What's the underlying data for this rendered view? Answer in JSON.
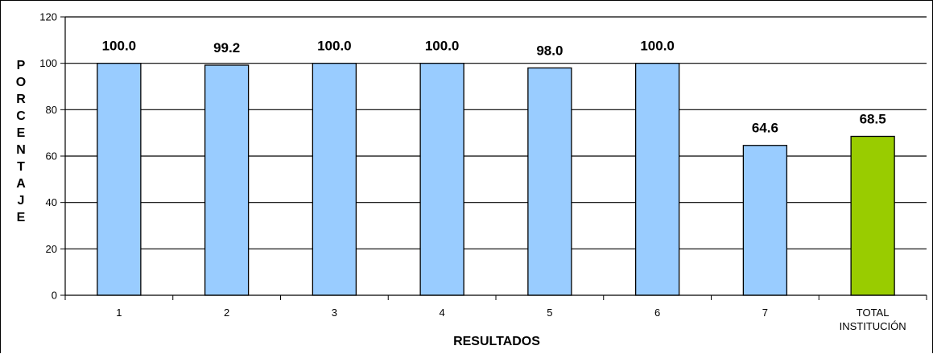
{
  "chart_data": {
    "type": "bar",
    "categories": [
      "1",
      "2",
      "3",
      "4",
      "5",
      "6",
      "7",
      "TOTAL INSTITUCIÓN"
    ],
    "category_lines": [
      [
        "1"
      ],
      [
        "2"
      ],
      [
        "3"
      ],
      [
        "4"
      ],
      [
        "5"
      ],
      [
        "6"
      ],
      [
        "7"
      ],
      [
        "TOTAL",
        "INSTITUCIÓN"
      ]
    ],
    "values": [
      100.0,
      99.2,
      100.0,
      100.0,
      98.0,
      100.0,
      64.6,
      68.5
    ],
    "data_labels": [
      "100.0",
      "99.2",
      "100.0",
      "100.0",
      "98.0",
      "100.0",
      "64.6",
      "68.5"
    ],
    "bar_colors": [
      "#99ccff",
      "#99ccff",
      "#99ccff",
      "#99ccff",
      "#99ccff",
      "#99ccff",
      "#99ccff",
      "#99cc00"
    ],
    "title": "",
    "xlabel": "RESULTADOS",
    "ylabel": "PORCENTAJE",
    "ylim": [
      0,
      120
    ],
    "yticks": [
      0,
      20,
      40,
      60,
      80,
      100,
      120
    ],
    "grid": true,
    "legend": "none"
  }
}
